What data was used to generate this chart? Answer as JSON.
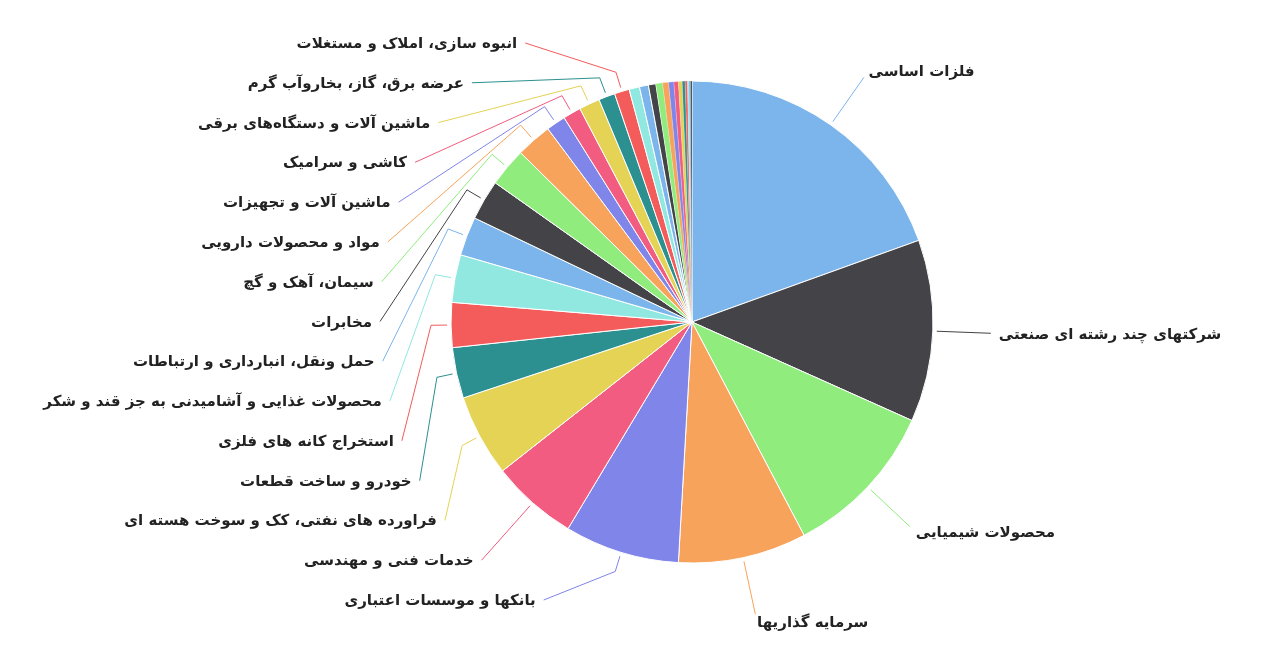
{
  "chart_data": {
    "type": "pie",
    "categories": [
      "فلزات اساسی",
      "شرکتهای چند رشته ای صنعتی",
      "محصولات شیمیایی",
      "سرمایه گذاریها",
      "بانکها و موسسات اعتباری",
      "خدمات فنی و مهندسی",
      "فراورده های نفتی، کک و سوخت هسته ای",
      "خودرو و ساخت قطعات",
      "استخراج کانه های فلزی",
      "محصولات غذایی و آشامیدنی به جز قند و شکر",
      "حمل ونقل، انبارداری و ارتباطات",
      "مخابرات",
      "سیمان، آهک و گچ",
      "مواد و محصولات دارویی",
      "ماشین آلات و تجهیزات",
      "کاشی و سرامیک",
      "ماشین آلات و دستگاه‌های برقی",
      "عرضه برق، گاز، بخاروآب گرم",
      "انبوه سازی، املاک و مستغلات",
      null,
      null,
      null,
      null,
      null,
      null,
      null,
      null,
      null,
      null,
      null,
      null,
      null
    ],
    "values": [
      19.5,
      12.2,
      10.6,
      8.6,
      7.7,
      5.8,
      5.5,
      3.4,
      3.0,
      3.2,
      2.6,
      2.7,
      2.6,
      2.4,
      1.3,
      1.2,
      1.4,
      1.1,
      1.0,
      0.7,
      0.6,
      0.5,
      0.45,
      0.4,
      0.35,
      0.3,
      0.25,
      0.2,
      0.15,
      0.1,
      0.1,
      0.1
    ],
    "colors": [
      "#7cb5ec",
      "#434348",
      "#90ed7d",
      "#f7a35c",
      "#8085e9",
      "#f15c80",
      "#e4d354",
      "#2b908f",
      "#f45b5b",
      "#91e8e1",
      "#7cb5ec",
      "#434348",
      "#90ed7d",
      "#f7a35c",
      "#8085e9",
      "#f15c80",
      "#e4d354",
      "#2b908f",
      "#f45b5b",
      "#91e8e1",
      "#7cb5ec",
      "#434348",
      "#90ed7d",
      "#f7a35c",
      "#8085e9",
      "#f15c80",
      "#e4d354",
      "#2b908f",
      "#f45b5b",
      "#91e8e1",
      "#7cb5ec",
      "#434348"
    ]
  }
}
